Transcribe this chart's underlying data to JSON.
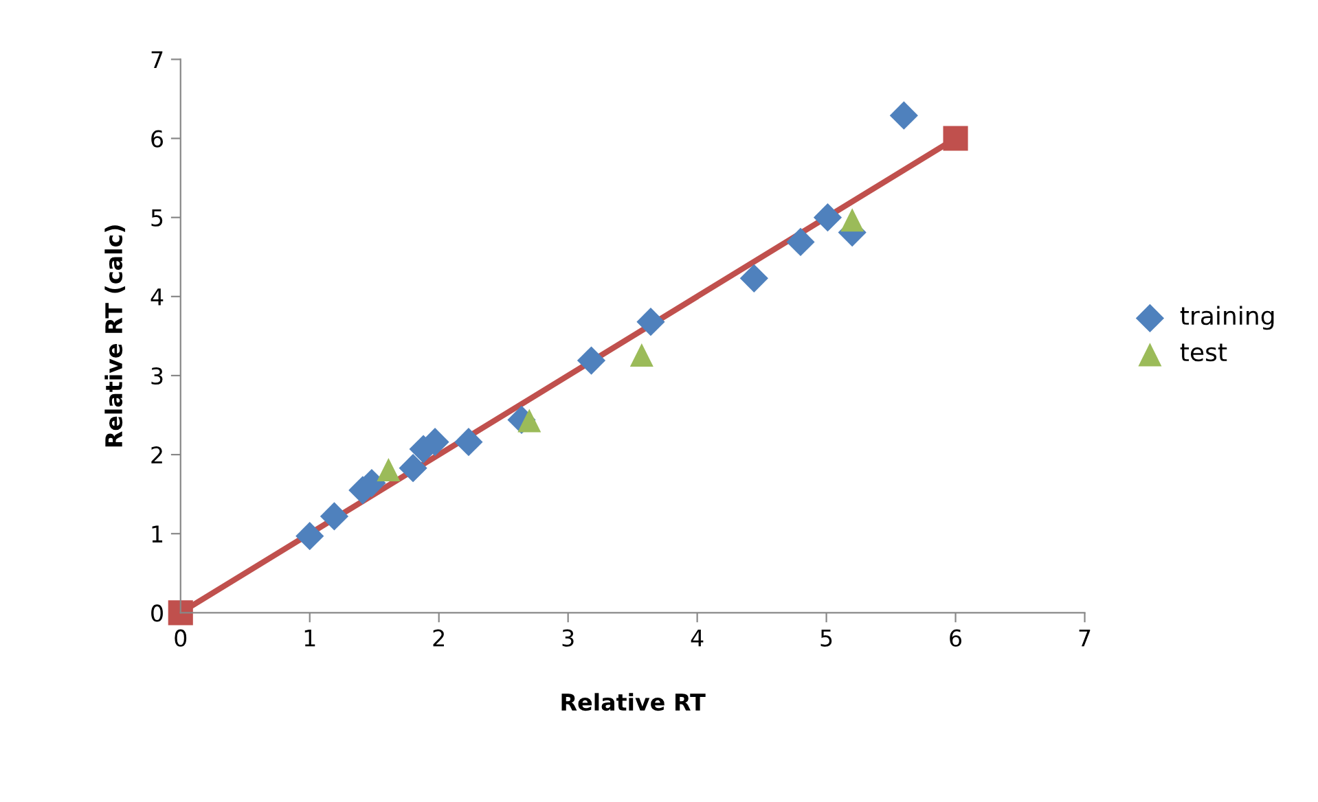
{
  "chart_data": {
    "type": "scatter",
    "xlabel": "Relative RT",
    "ylabel": "Relative RT (calc)",
    "xlim": [
      0,
      7
    ],
    "ylim": [
      0,
      7
    ],
    "xticks": [
      0,
      1,
      2,
      3,
      4,
      5,
      6,
      7
    ],
    "yticks": [
      0,
      1,
      2,
      3,
      4,
      5,
      6,
      7
    ],
    "grid": false,
    "legend": "right",
    "series": [
      {
        "name": "training",
        "color": "#4f81bd",
        "marker": "diamond",
        "x": [
          1.0,
          1.19,
          1.41,
          1.48,
          1.8,
          1.88,
          1.97,
          2.23,
          2.64,
          3.18,
          3.64,
          4.44,
          4.8,
          5.01,
          5.2,
          5.6
        ],
        "values": [
          0.97,
          1.22,
          1.55,
          1.64,
          1.83,
          2.07,
          2.16,
          2.16,
          2.44,
          3.19,
          3.68,
          4.23,
          4.69,
          5.0,
          4.81,
          6.29
        ]
      },
      {
        "name": "test",
        "color": "#9bbb59",
        "marker": "triangle",
        "x": [
          1.61,
          2.7,
          3.57,
          5.2
        ],
        "values": [
          1.81,
          2.43,
          3.26,
          4.97
        ]
      },
      {
        "type": "line",
        "color": "#c0504d",
        "marker": "square",
        "line_style": "solid",
        "x": [
          0,
          6
        ],
        "values": [
          0,
          6
        ]
      }
    ]
  }
}
